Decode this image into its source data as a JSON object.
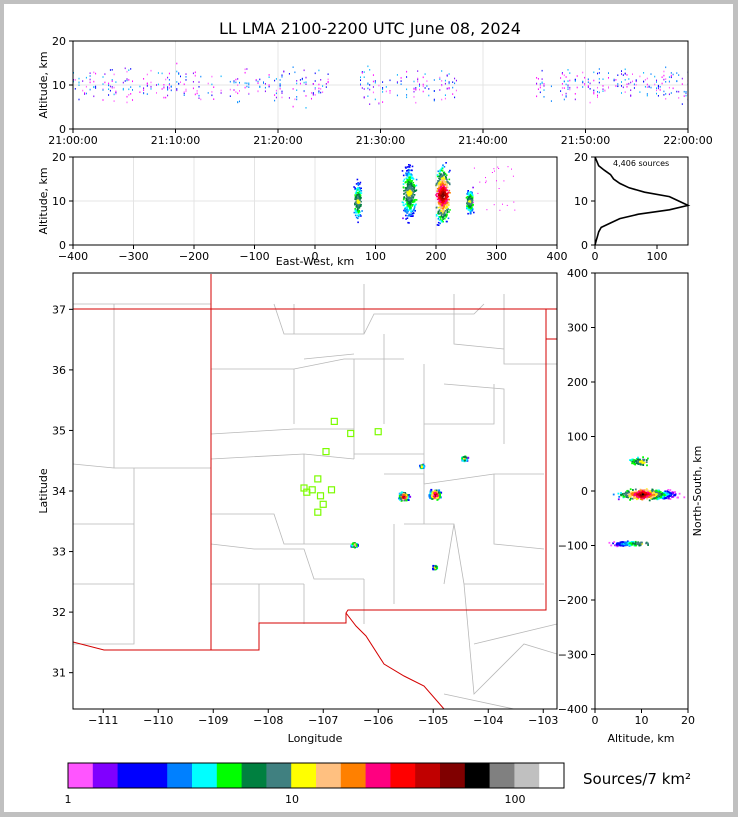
{
  "title": "LL LMA 2100-2200 UTC June 08, 2024",
  "colors": {
    "state_border": "#d40000",
    "county_line": "#b8b8b8",
    "station": "#7cfc00",
    "background_frame": "#c0c0c0"
  },
  "chart_data": [
    {
      "name": "time-height",
      "type": "scatter",
      "ylabel": "Altitude, km",
      "ylim": [
        0,
        20
      ],
      "yticks": [
        "0",
        "10",
        "20"
      ],
      "xticks": [
        "21:00:00",
        "21:10:00",
        "21:20:00",
        "21:30:00",
        "21:40:00",
        "21:50:00",
        "22:00:00"
      ],
      "xlim_minutes": [
        0,
        60
      ],
      "active_time_minutes": [
        [
          0,
          25
        ],
        [
          28,
          37.5
        ],
        [
          45,
          60
        ]
      ]
    },
    {
      "name": "east-west-altitude",
      "type": "scatter",
      "xlabel": "East-West, km",
      "ylabel": "Altitude, km",
      "xlim": [
        -400,
        400
      ],
      "ylim": [
        0,
        20
      ],
      "xticks": [
        "−400",
        "−300",
        "−200",
        "−100",
        "0",
        "100",
        "200",
        "300",
        "400"
      ],
      "yticks": [
        "0",
        "10",
        "20"
      ],
      "clusters": [
        {
          "x": 70,
          "ymin": 4,
          "ymax": 16,
          "halfwidth": 8
        },
        {
          "x": 155,
          "ymin": 4,
          "ymax": 20,
          "halfwidth": 14
        },
        {
          "x": 210,
          "ymin": 3,
          "ymax": 20,
          "halfwidth": 14
        },
        {
          "x": 255,
          "ymin": 6,
          "ymax": 14,
          "halfwidth": 8
        }
      ]
    },
    {
      "name": "altitude-histogram",
      "type": "line",
      "label": "4,406 sources",
      "xlim": [
        0,
        150
      ],
      "ylim": [
        0,
        20
      ],
      "xticks": [
        "0",
        "100"
      ],
      "yticks": [
        "0",
        "10",
        "20"
      ],
      "profile_altitude_km": [
        0,
        1,
        2,
        3,
        4,
        5,
        6,
        7,
        8,
        9,
        10,
        11,
        12,
        13,
        14,
        15,
        16,
        17,
        18,
        19,
        20
      ],
      "profile_count": [
        0,
        2,
        4,
        6,
        10,
        25,
        40,
        70,
        120,
        150,
        135,
        120,
        80,
        55,
        40,
        30,
        25,
        15,
        6,
        3,
        0
      ]
    },
    {
      "name": "plan-view-map",
      "type": "scatter",
      "xlabel": "Longitude",
      "ylabel": "Latitude",
      "xlim": [
        -111.55,
        -102.75
      ],
      "ylim": [
        30.4,
        37.6
      ],
      "xticks": [
        "−111",
        "−110",
        "−109",
        "−108",
        "−107",
        "−106",
        "−105",
        "−104",
        "−103"
      ],
      "yticks": [
        "31",
        "32",
        "33",
        "34",
        "35",
        "36",
        "37"
      ],
      "stations": [
        [
          -107.2,
          34.02
        ],
        [
          -107.35,
          34.05
        ],
        [
          -107.1,
          34.2
        ],
        [
          -107.3,
          33.98
        ],
        [
          -107.05,
          33.92
        ],
        [
          -107.0,
          33.78
        ],
        [
          -107.1,
          33.65
        ],
        [
          -106.85,
          34.02
        ],
        [
          -106.95,
          34.65
        ],
        [
          -106.8,
          35.15
        ],
        [
          -106.5,
          34.95
        ],
        [
          -106.0,
          34.98
        ]
      ],
      "clusters": [
        {
          "lon": -105.55,
          "lat": 33.92,
          "size": 0.12
        },
        {
          "lon": -104.98,
          "lat": 33.95,
          "size": 0.14
        },
        {
          "lon": -106.45,
          "lat": 33.12,
          "size": 0.08
        },
        {
          "lon": -104.45,
          "lat": 34.55,
          "size": 0.08
        },
        {
          "lon": -105.22,
          "lat": 34.42,
          "size": 0.05
        },
        {
          "lon": -104.98,
          "lat": 32.75,
          "size": 0.06
        }
      ]
    },
    {
      "name": "altitude-north-south",
      "type": "scatter",
      "xlabel": "Altitude, km",
      "ylabel": "North-South, km",
      "xlim": [
        0,
        20
      ],
      "ylim": [
        -400,
        400
      ],
      "xticks": [
        "0",
        "10",
        "20"
      ],
      "yticks": [
        "−400",
        "−300",
        "−200",
        "−100",
        "0",
        "100",
        "200",
        "300",
        "400"
      ],
      "clusters": [
        {
          "y": -5,
          "xmin": 3,
          "xmax": 20,
          "spread": 12
        },
        {
          "y": -95,
          "xmin": 2,
          "xmax": 12,
          "spread": 6
        },
        {
          "y": 55,
          "xmin": 6,
          "xmax": 12,
          "spread": 10
        }
      ]
    }
  ],
  "colorbar": {
    "label": "Sources/7 km²",
    "tick_labels": [
      "1",
      "10",
      "100"
    ],
    "colors": [
      "#ff55ff",
      "#8000ff",
      "#0000ff",
      "#0000ff",
      "#0080ff",
      "#00ffff",
      "#00ff00",
      "#008040",
      "#408080",
      "#ffff00",
      "#ffc080",
      "#ff8000",
      "#ff0080",
      "#ff0000",
      "#c00000",
      "#800000",
      "#000000",
      "#808080",
      "#c0c0c0",
      "#ffffff"
    ]
  }
}
